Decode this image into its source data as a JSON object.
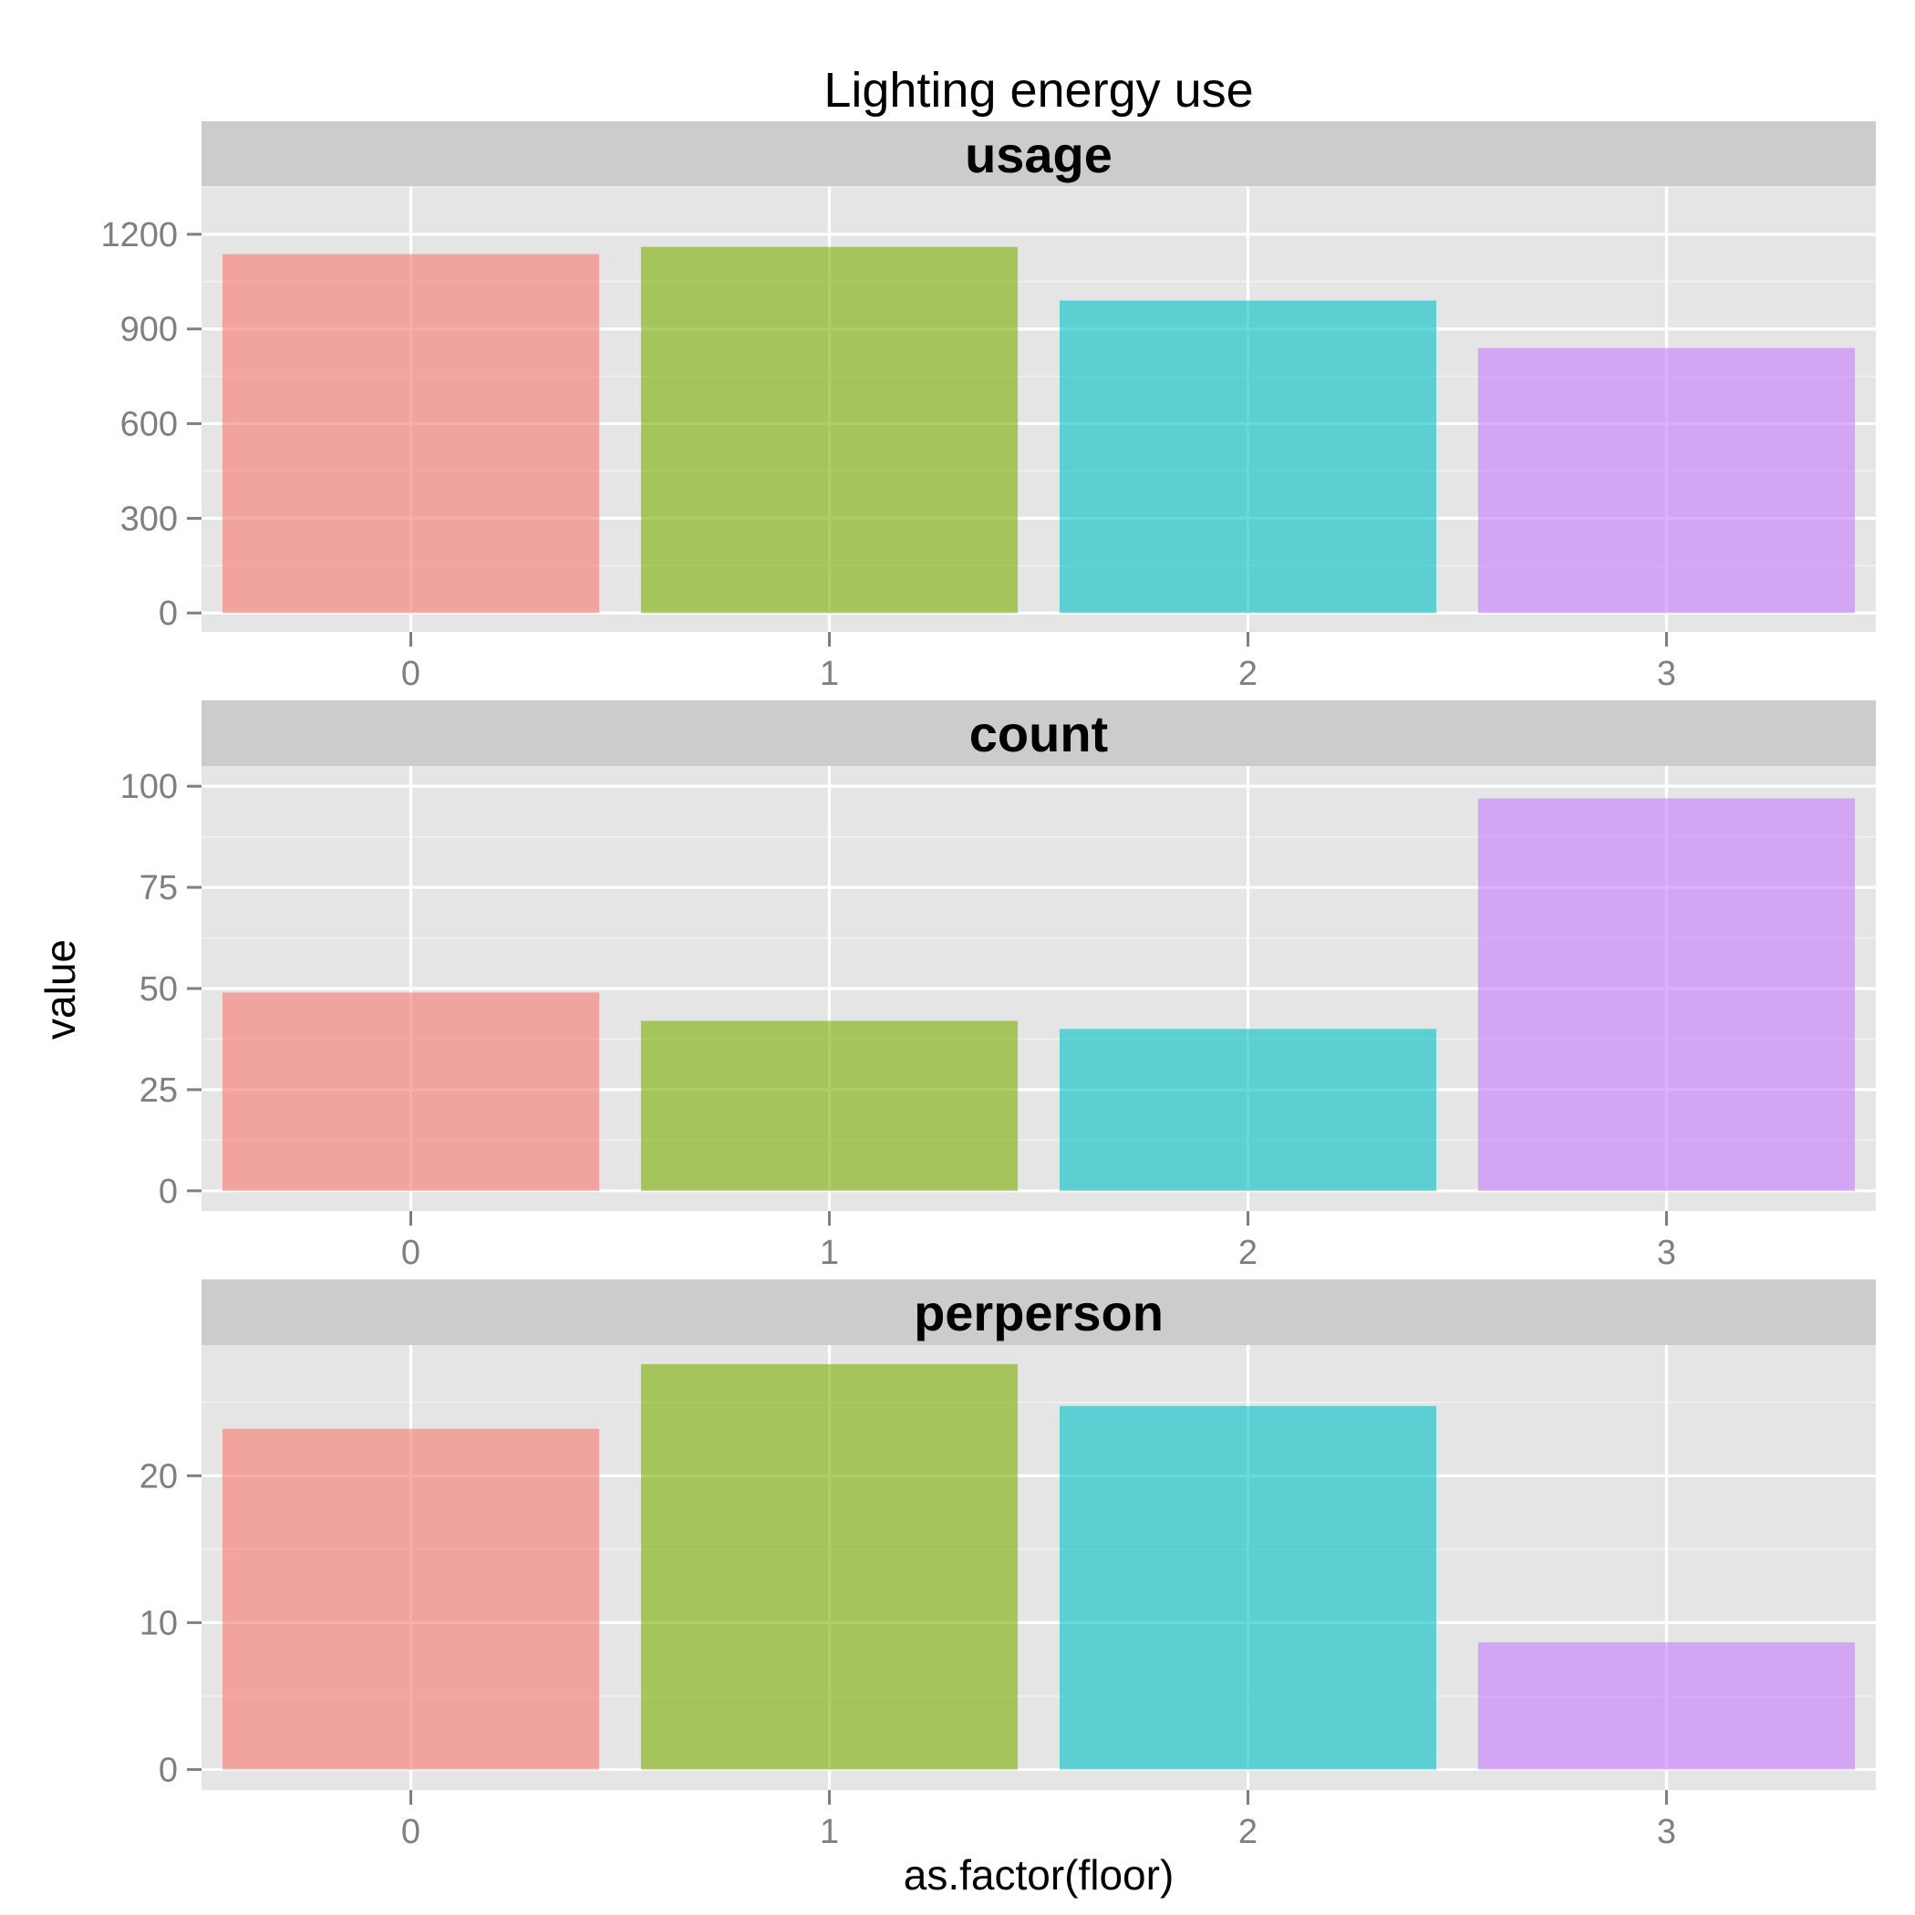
{
  "chart_data": {
    "type": "bar",
    "title": "Lighting energy use",
    "xlabel": "as.factor(floor)",
    "ylabel": "value",
    "categories": [
      "0",
      "1",
      "2",
      "3"
    ],
    "colors": [
      "#F8766D",
      "#7CAE00",
      "#00BFC4",
      "#C77CFF"
    ],
    "fill_opacity": 0.6,
    "grid": true,
    "legend": "none",
    "facets": [
      {
        "label": "usage",
        "values": [
          1137,
          1160,
          990,
          840
        ],
        "ylim": [
          -60,
          1350
        ],
        "yticks": [
          0,
          300,
          600,
          900,
          1200
        ],
        "ytick_labels": [
          "0",
          "300",
          "600",
          "900",
          "1200"
        ]
      },
      {
        "label": "count",
        "values": [
          49,
          42,
          40,
          97
        ],
        "ylim": [
          -5,
          105
        ],
        "yticks": [
          0,
          25,
          50,
          75,
          100
        ],
        "ytick_labels": [
          "0",
          "25",
          "50",
          "75",
          "100"
        ]
      },
      {
        "label": "perperson",
        "values": [
          23.2,
          27.6,
          24.75,
          8.66
        ],
        "ylim": [
          -1.4,
          28.9
        ],
        "yticks": [
          0,
          10,
          20
        ],
        "ytick_labels": [
          "0",
          "10",
          "20"
        ]
      }
    ]
  }
}
